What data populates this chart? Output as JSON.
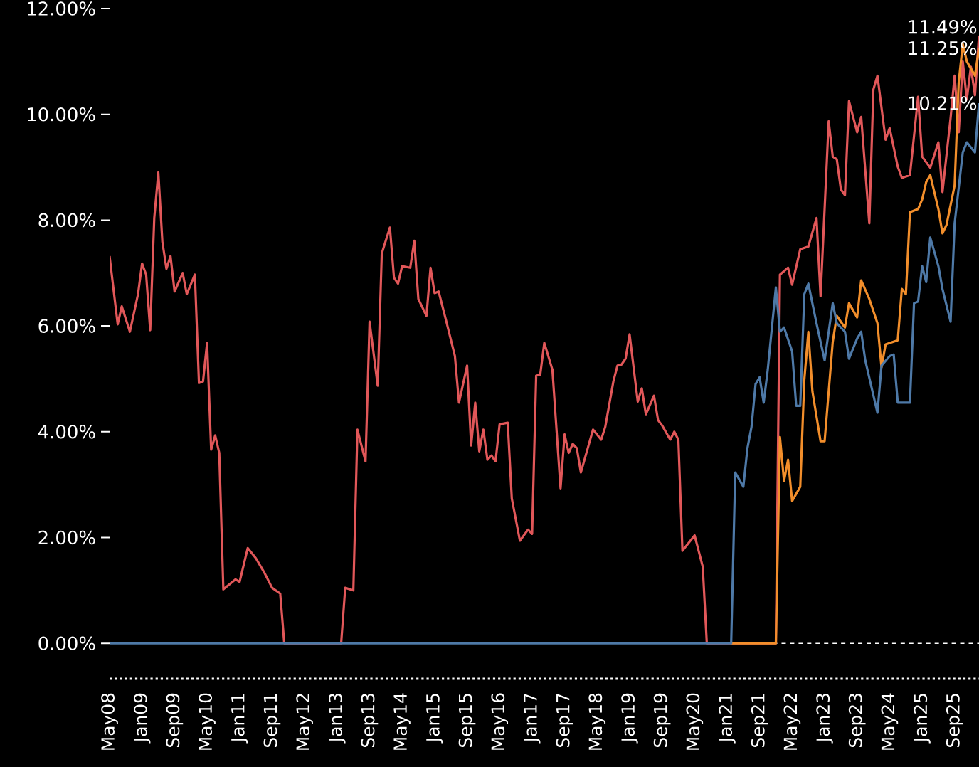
{
  "chart_data": {
    "type": "line",
    "line_style": "solid",
    "xlim": [
      "2008-05",
      "2026-03"
    ],
    "ylim": [
      -0.67,
      12
    ],
    "xticks": [
      {
        "value": "2008-05",
        "label": "May08"
      },
      {
        "value": "2009-01",
        "label": "Jan09"
      },
      {
        "value": "2009-09",
        "label": "Sep09"
      },
      {
        "value": "2010-05",
        "label": "May10"
      },
      {
        "value": "2011-01",
        "label": "Jan11"
      },
      {
        "value": "2011-09",
        "label": "Sep11"
      },
      {
        "value": "2012-05",
        "label": "May12"
      },
      {
        "value": "2013-01",
        "label": "Jan13"
      },
      {
        "value": "2013-09",
        "label": "Sep13"
      },
      {
        "value": "2014-05",
        "label": "May14"
      },
      {
        "value": "2015-01",
        "label": "Jan15"
      },
      {
        "value": "2015-09",
        "label": "Sep15"
      },
      {
        "value": "2016-05",
        "label": "May16"
      },
      {
        "value": "2017-01",
        "label": "Jan17"
      },
      {
        "value": "2017-09",
        "label": "Sep17"
      },
      {
        "value": "2018-05",
        "label": "May18"
      },
      {
        "value": "2019-01",
        "label": "Jan19"
      },
      {
        "value": "2019-09",
        "label": "Sep19"
      },
      {
        "value": "2020-05",
        "label": "May20"
      },
      {
        "value": "2021-01",
        "label": "Jan21"
      },
      {
        "value": "2021-09",
        "label": "Sep21"
      },
      {
        "value": "2022-05",
        "label": "May22"
      },
      {
        "value": "2023-01",
        "label": "Jan23"
      },
      {
        "value": "2023-09",
        "label": "Sep23"
      },
      {
        "value": "2024-05",
        "label": "May24"
      },
      {
        "value": "2025-01",
        "label": "Jan25"
      },
      {
        "value": "2025-09",
        "label": "Sep25"
      }
    ],
    "yticks": [
      {
        "value": 0,
        "label": "0.00%"
      },
      {
        "value": 2,
        "label": "2.00%"
      },
      {
        "value": 4,
        "label": "4.00%"
      },
      {
        "value": 6,
        "label": "6.00%"
      },
      {
        "value": 8,
        "label": "8.00%"
      },
      {
        "value": 10,
        "label": "10.00%"
      },
      {
        "value": 12,
        "label": "12.00%"
      }
    ],
    "ref_lines": [
      {
        "axis": "y",
        "value": 0,
        "color": "#ffffff",
        "line_style": "dashed"
      }
    ],
    "annotations": [
      {
        "text": "11.49%",
        "x": "2026-03",
        "y": 11.49
      },
      {
        "text": "11.25%",
        "x": "2026-03",
        "y": 11.25
      },
      {
        "text": "10.21%",
        "x": "2026-03",
        "y": 10.21
      }
    ],
    "series": [
      {
        "color": "#e15759",
        "x": [
          "2008-05",
          "2008-07",
          "2008-08",
          "2008-10",
          "2008-12",
          "2009-01",
          "2009-02",
          "2009-03",
          "2009-04",
          "2009-05",
          "2009-06",
          "2009-07",
          "2009-08",
          "2009-09",
          "2009-11",
          "2009-12",
          "2010-02",
          "2010-03",
          "2010-04",
          "2010-05",
          "2010-06",
          "2010-07",
          "2010-08",
          "2010-09",
          "2010-12",
          "2011-01",
          "2011-03",
          "2011-05",
          "2011-07",
          "2011-09",
          "2011-11",
          "2011-12",
          "2013-02",
          "2013-03",
          "2013-05",
          "2013-06",
          "2013-08",
          "2013-09",
          "2013-11",
          "2013-12",
          "2014-02",
          "2014-03",
          "2014-04",
          "2014-05",
          "2014-07",
          "2014-08",
          "2014-09",
          "2014-11",
          "2014-12",
          "2015-01",
          "2015-02",
          "2015-04",
          "2015-06",
          "2015-07",
          "2015-09",
          "2015-10",
          "2015-11",
          "2015-12",
          "2016-01",
          "2016-02",
          "2016-03",
          "2016-04",
          "2016-05",
          "2016-07",
          "2016-08",
          "2016-10",
          "2016-12",
          "2017-01",
          "2017-02",
          "2017-03",
          "2017-04",
          "2017-06",
          "2017-08",
          "2017-09",
          "2017-10",
          "2017-11",
          "2017-12",
          "2018-01",
          "2018-03",
          "2018-04",
          "2018-06",
          "2018-07",
          "2018-09",
          "2018-10",
          "2018-11",
          "2018-12",
          "2019-01",
          "2019-03",
          "2019-04",
          "2019-05",
          "2019-07",
          "2019-08",
          "2019-09",
          "2019-11",
          "2019-12",
          "2020-01",
          "2020-02",
          "2020-05",
          "2020-07",
          "2020-08",
          "2022-01",
          "2022-02",
          "2022-04",
          "2022-05",
          "2022-07",
          "2022-09",
          "2022-11",
          "2022-12",
          "2023-02",
          "2023-03",
          "2023-04",
          "2023-05",
          "2023-06",
          "2023-07",
          "2023-09",
          "2023-10",
          "2023-12",
          "2024-01",
          "2024-02",
          "2024-04",
          "2024-05",
          "2024-07",
          "2024-08",
          "2024-10",
          "2024-12",
          "2025-01",
          "2025-03",
          "2025-05",
          "2025-06",
          "2025-08",
          "2025-09",
          "2025-10",
          "2025-11",
          "2025-12",
          "2026-01",
          "2026-02",
          "2026-03"
        ],
        "values": [
          7.32,
          6.03,
          6.37,
          5.89,
          6.6,
          7.18,
          6.97,
          5.92,
          8.04,
          8.9,
          7.59,
          7.08,
          7.32,
          6.65,
          7.0,
          6.6,
          6.97,
          4.92,
          4.95,
          5.68,
          3.66,
          3.93,
          3.6,
          1.02,
          1.21,
          1.16,
          1.8,
          1.61,
          1.35,
          1.05,
          0.94,
          0,
          0,
          1.05,
          1.0,
          4.04,
          3.44,
          6.08,
          4.87,
          7.37,
          7.86,
          6.91,
          6.8,
          7.13,
          7.1,
          7.61,
          6.51,
          6.19,
          7.1,
          6.62,
          6.65,
          6.05,
          5.43,
          4.55,
          5.25,
          3.74,
          4.55,
          3.63,
          4.04,
          3.47,
          3.55,
          3.44,
          4.14,
          4.17,
          2.74,
          1.94,
          2.15,
          2.07,
          5.06,
          5.08,
          5.68,
          5.17,
          2.93,
          3.95,
          3.6,
          3.77,
          3.69,
          3.23,
          3.77,
          4.04,
          3.85,
          4.09,
          4.95,
          5.25,
          5.27,
          5.38,
          5.84,
          4.57,
          4.82,
          4.33,
          4.68,
          4.22,
          4.12,
          3.85,
          4.0,
          3.85,
          1.75,
          2.04,
          1.45,
          0,
          0,
          6.97,
          7.1,
          6.78,
          7.45,
          7.5,
          8.04,
          6.56,
          9.87,
          9.2,
          9.15,
          8.58,
          8.47,
          10.25,
          9.66,
          9.95,
          7.94,
          10.47,
          10.73,
          9.52,
          9.74,
          9.01,
          8.8,
          8.85,
          10.33,
          9.2,
          8.99,
          9.47,
          8.53,
          9.93,
          10.73,
          9.66,
          11.0,
          10.28,
          10.9,
          10.36,
          11.49
        ]
      },
      {
        "color": "#f28e2b",
        "x": [
          "2021-02",
          "2022-01",
          "2022-02",
          "2022-03",
          "2022-04",
          "2022-05",
          "2022-07",
          "2022-08",
          "2022-09",
          "2022-10",
          "2022-12",
          "2023-01",
          "2023-03",
          "2023-04",
          "2023-06",
          "2023-07",
          "2023-09",
          "2023-10",
          "2023-12",
          "2024-02",
          "2024-03",
          "2024-04",
          "2024-07",
          "2024-08",
          "2024-09",
          "2024-10",
          "2024-12",
          "2025-01",
          "2025-02",
          "2025-03",
          "2025-05",
          "2025-06",
          "2025-07",
          "2025-09",
          "2025-10",
          "2025-11",
          "2025-12",
          "2026-02",
          "2026-03"
        ],
        "values": [
          0,
          0,
          3.9,
          3.07,
          3.47,
          2.69,
          2.96,
          4.98,
          5.89,
          4.76,
          3.82,
          3.82,
          5.7,
          6.19,
          5.97,
          6.43,
          6.16,
          6.86,
          6.51,
          6.05,
          5.22,
          5.65,
          5.73,
          6.7,
          6.6,
          8.15,
          8.21,
          8.39,
          8.72,
          8.85,
          8.21,
          7.75,
          7.91,
          8.66,
          10.6,
          11.33,
          11.0,
          10.73,
          11.25
        ]
      },
      {
        "color": "#4e79a7",
        "x": [
          "2008-05",
          "2021-02",
          "2021-03",
          "2021-05",
          "2021-06",
          "2021-07",
          "2021-08",
          "2021-09",
          "2021-10",
          "2021-11",
          "2022-01",
          "2022-02",
          "2022-03",
          "2022-05",
          "2022-06",
          "2022-07",
          "2022-08",
          "2022-09",
          "2022-11",
          "2023-01",
          "2023-03",
          "2023-04",
          "2023-06",
          "2023-07",
          "2023-09",
          "2023-10",
          "2023-11",
          "2024-02",
          "2024-03",
          "2024-05",
          "2024-06",
          "2024-07",
          "2024-10",
          "2024-11",
          "2024-12",
          "2025-01",
          "2025-02",
          "2025-03",
          "2025-05",
          "2025-06",
          "2025-08",
          "2025-09",
          "2025-11",
          "2025-12",
          "2026-02",
          "2026-03"
        ],
        "values": [
          0,
          0,
          3.23,
          2.96,
          3.69,
          4.09,
          4.9,
          5.03,
          4.55,
          5.17,
          6.73,
          5.89,
          5.97,
          5.52,
          4.49,
          4.49,
          6.6,
          6.8,
          6.05,
          5.35,
          6.43,
          6.05,
          5.89,
          5.38,
          5.76,
          5.89,
          5.35,
          4.36,
          5.25,
          5.43,
          5.46,
          4.55,
          4.55,
          6.43,
          6.46,
          7.13,
          6.83,
          7.67,
          7.13,
          6.7,
          6.08,
          7.94,
          9.28,
          9.47,
          9.28,
          10.21
        ]
      }
    ]
  }
}
